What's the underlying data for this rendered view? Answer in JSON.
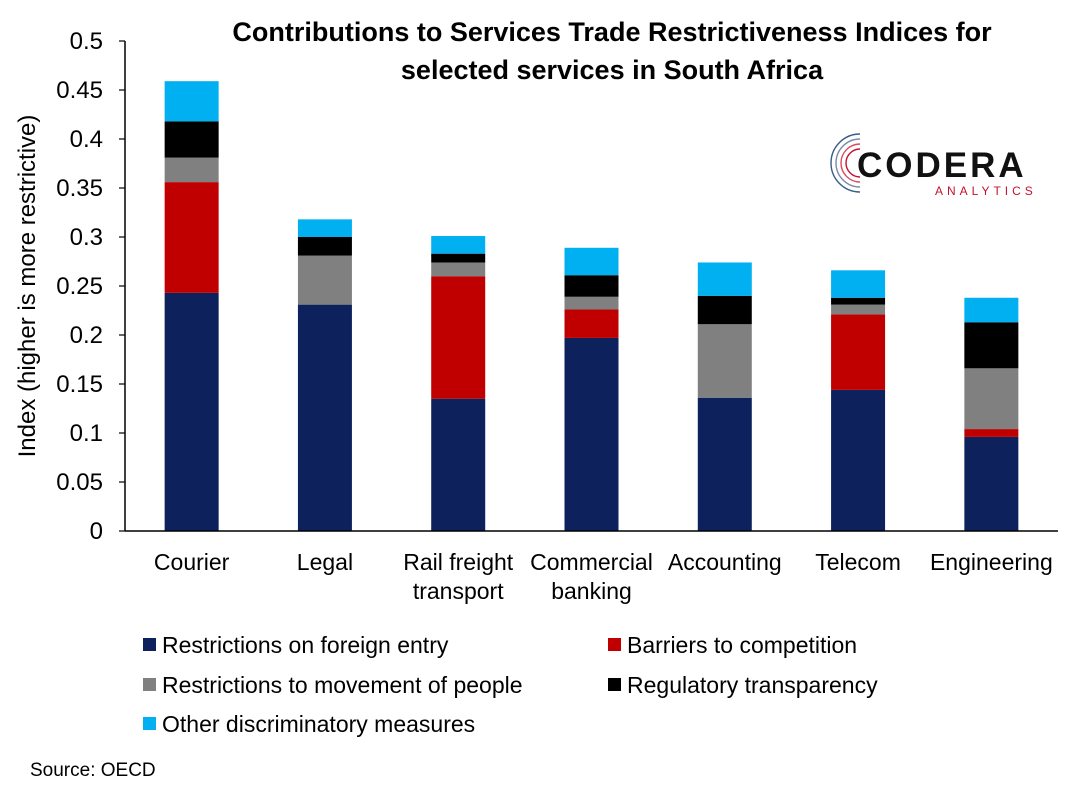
{
  "chart_data": {
    "type": "bar",
    "stacked": true,
    "title": [
      "Contributions to Services Trade Restrictiveness Indices for",
      "selected services in South Africa"
    ],
    "ylabel": "Index (higher is more restrictive)",
    "xlabel": "",
    "ylim": [
      0,
      0.5
    ],
    "yticks": [
      "0",
      "0.05",
      "0.1",
      "0.15",
      "0.2",
      "0.25",
      "0.3",
      "0.35",
      "0.4",
      "0.45",
      "0.5"
    ],
    "categories": [
      [
        "Courier"
      ],
      [
        "Legal"
      ],
      [
        "Rail freight",
        "transport"
      ],
      [
        "Commercial",
        "banking"
      ],
      [
        "Accounting"
      ],
      [
        "Telecom"
      ],
      [
        "Engineering"
      ]
    ],
    "series": [
      {
        "name": "Restrictions on foreign entry",
        "color": "#0d215c",
        "values": [
          0.243,
          0.231,
          0.135,
          0.197,
          0.136,
          0.144,
          0.096
        ]
      },
      {
        "name": "Barriers to competition",
        "color": "#c00000",
        "values": [
          0.113,
          0.0,
          0.125,
          0.029,
          0.0,
          0.077,
          0.008
        ]
      },
      {
        "name": "Restrictions to movement of people",
        "color": "#808080",
        "values": [
          0.025,
          0.05,
          0.014,
          0.013,
          0.075,
          0.01,
          0.062
        ]
      },
      {
        "name": "Regulatory transparency",
        "color": "#000000",
        "values": [
          0.037,
          0.019,
          0.009,
          0.022,
          0.029,
          0.007,
          0.047
        ]
      },
      {
        "name": "Other discriminatory measures",
        "color": "#00b0f0",
        "values": [
          0.041,
          0.018,
          0.018,
          0.028,
          0.034,
          0.028,
          0.025
        ]
      }
    ],
    "legend_position": "bottom",
    "grid": false
  },
  "logo": {
    "main": "CODERA",
    "sub": "ANALYTICS"
  },
  "source": "Source: OECD"
}
